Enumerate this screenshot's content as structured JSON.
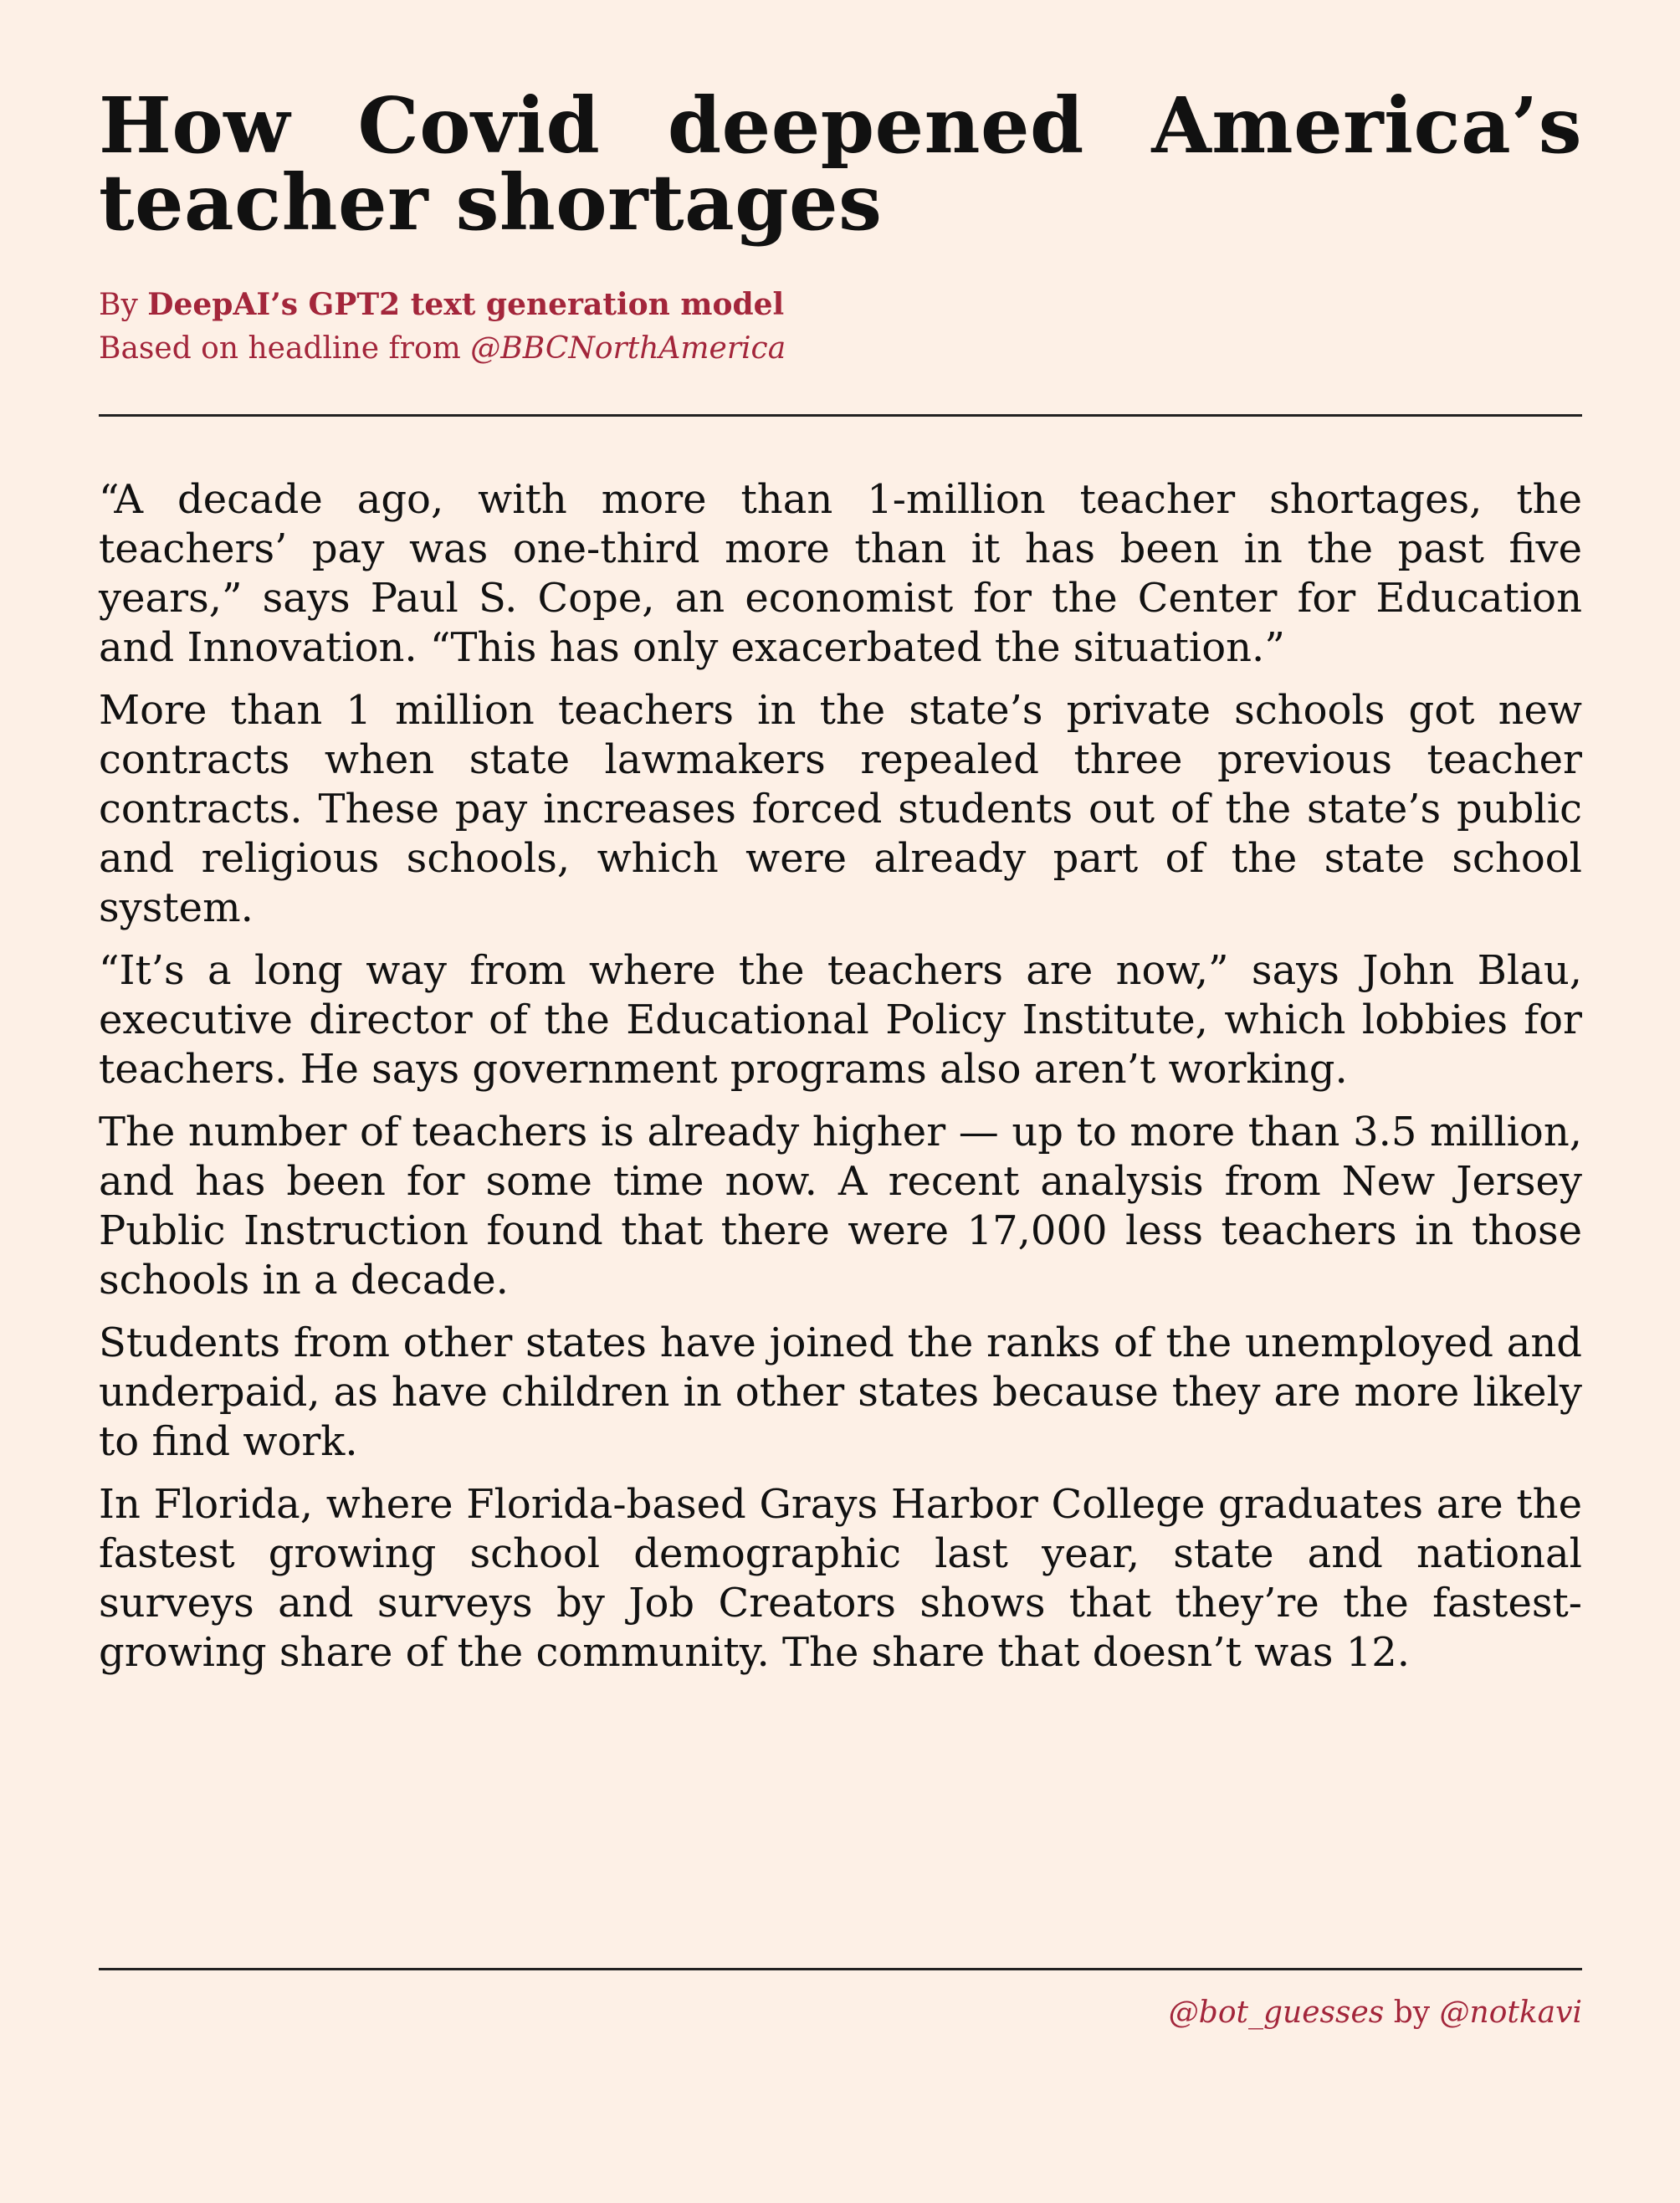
{
  "article": {
    "title": "How Covid deepened America’s teacher shortages",
    "byline": {
      "prefix": "By ",
      "author": "DeepAI’s GPT2 text generation model",
      "source_prefix": "Based on headline from ",
      "source_handle": "@BBCNorthAmerica"
    },
    "paragraphs": [
      "“A decade ago, with more than 1-million teacher shortages, the teachers’ pay was one-third more than it has been in the past five years,” says Paul S. Cope, an economist for the Center for Education and Innovation. “This has only exacerbated the situation.”",
      "More than 1 million teachers in the state’s private schools got new contracts when state lawmakers repealed three previous teacher contracts. These pay increases forced students out of the state’s public and religious schools, which were already part of the state school system.",
      "“It’s a long way from where the teachers are now,” says John Blau, executive director of the Educational Policy Institute, which lobbies for teachers. He says government programs also aren’t working.",
      "The number of teachers is already higher — up to more than 3.5 million, and has been for some time now. A recent analysis from New Jersey Public Instruction found that there were 17,000 less teachers in those schools in a decade.",
      "Students from other states have joined the ranks of the unemployed and underpaid, as have children in other states because they are more likely to find work.",
      "In Florida, where Florida-based Grays Harbor College graduates are the fastest growing school demographic last year, state and national surveys and surveys by Job Creators shows that they’re the fastest-growing share of the community. The share that doesn’t was 12."
    ]
  },
  "footer": {
    "bot_handle": "@bot_guesses",
    "by_text": " by ",
    "author_handle": "@notkavi"
  },
  "colors": {
    "background": "#fdf0e6",
    "accent": "#a3263b",
    "text": "#111111"
  }
}
